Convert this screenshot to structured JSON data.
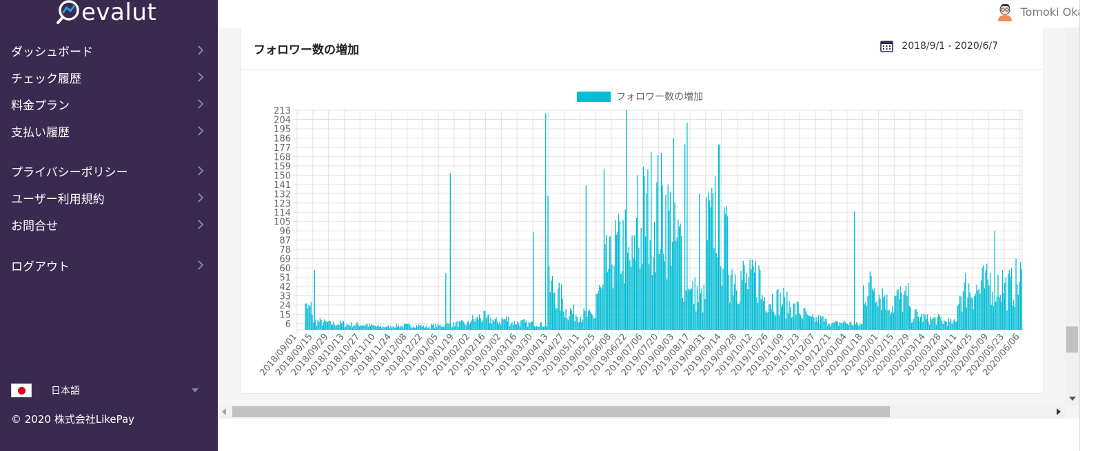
{
  "app": {
    "logo_text": "evalut",
    "user_name": "Tomoki Oka"
  },
  "sidebar": {
    "items": [
      {
        "label": "ダッシュボード"
      },
      {
        "label": "チェック履歴"
      },
      {
        "label": "料金プラン"
      },
      {
        "label": "支払い履歴"
      },
      {
        "label": "プライバシーポリシー"
      },
      {
        "label": "ユーザー利用規約"
      },
      {
        "label": "お問合せ"
      },
      {
        "label": "ログアウト"
      }
    ],
    "language": "日本語",
    "copyright": "© 2020 株式会社LikePay"
  },
  "card": {
    "title": "フォロワー数の増加",
    "date_range": "2018/9/1 - 2020/6/7"
  },
  "colors": {
    "sidebar_bg": "#3b2a50",
    "bar": "#00bcd4"
  },
  "chart_data": {
    "type": "bar",
    "legend": "フォロワー数の増加",
    "legend_position": "top-center",
    "grid": true,
    "x_start": "2018-09-01",
    "x_end": "2020-06-07",
    "ylim": [
      0,
      213
    ],
    "y_ticks": [
      6,
      15,
      24,
      33,
      42,
      51,
      60,
      69,
      78,
      87,
      96,
      105,
      114,
      123,
      132,
      141,
      150,
      159,
      168,
      177,
      186,
      195,
      204,
      213
    ],
    "x_tick_labels": [
      "2018/09/01",
      "2018/09/15",
      "2018/09/29",
      "2018/10/13",
      "2018/10/27",
      "2018/11/10",
      "2018/11/24",
      "2018/12/08",
      "2018/12/22",
      "2019/01/05",
      "2019/01/19",
      "2019/02/02",
      "2019/02/16",
      "2019/03/02",
      "2019/03/16",
      "2019/03/30",
      "2019/04/13",
      "2019/04/27",
      "2019/05/11",
      "2019/05/25",
      "2019/06/08",
      "2019/06/22",
      "2019/07/06",
      "2019/07/20",
      "2019/08/03",
      "2019/08/17",
      "2019/08/31",
      "2019/09/14",
      "2019/09/28",
      "2019/10/12",
      "2019/10/26",
      "2019/11/09",
      "2019/11/23",
      "2019/12/07",
      "2019/12/21",
      "2020/01/04",
      "2020/01/18",
      "2020/02/01",
      "2020/02/15",
      "2020/02/29",
      "2020/03/14",
      "2020/03/28",
      "2020/04/11",
      "2020/04/25",
      "2020/05/09",
      "2020/05/23",
      "2020/06/06"
    ],
    "weekly_levels": [
      0,
      20,
      8,
      7,
      6,
      6,
      5,
      5,
      5,
      4,
      3,
      3,
      4,
      4,
      4,
      4,
      3,
      4,
      4,
      5,
      6,
      6,
      10,
      12,
      10,
      8,
      10,
      7,
      7,
      6,
      6,
      5,
      40,
      30,
      18,
      16,
      14,
      13,
      35,
      60,
      75,
      80,
      65,
      90,
      110,
      118,
      115,
      105,
      82,
      55,
      35,
      30,
      95,
      120,
      80,
      55,
      50,
      45,
      50,
      32,
      30,
      28,
      24,
      20,
      15,
      10,
      10,
      8,
      6,
      7,
      6,
      5,
      40,
      45,
      35,
      25,
      30,
      30,
      14,
      12,
      10,
      10,
      8,
      7,
      35,
      40,
      38,
      42,
      48,
      45,
      40,
      45,
      48,
      50,
      45,
      40
    ],
    "spikes": [
      {
        "date": "2018-09-16",
        "value": 58
      },
      {
        "date": "2019-01-11",
        "value": 55
      },
      {
        "date": "2019-01-15",
        "value": 152
      },
      {
        "date": "2019-03-30",
        "value": 95
      },
      {
        "date": "2019-04-10",
        "value": 210
      },
      {
        "date": "2019-04-12",
        "value": 130
      },
      {
        "date": "2019-05-16",
        "value": 140
      },
      {
        "date": "2019-06-01",
        "value": 156
      },
      {
        "date": "2019-06-21",
        "value": 213
      },
      {
        "date": "2019-07-01",
        "value": 150
      },
      {
        "date": "2019-08-02",
        "value": 186
      },
      {
        "date": "2019-08-12",
        "value": 180
      },
      {
        "date": "2019-08-14",
        "value": 201
      },
      {
        "date": "2019-08-25",
        "value": 132
      },
      {
        "date": "2019-09-19",
        "value": 110
      },
      {
        "date": "2020-01-10",
        "value": 115
      },
      {
        "date": "2020-05-14",
        "value": 96
      }
    ]
  }
}
